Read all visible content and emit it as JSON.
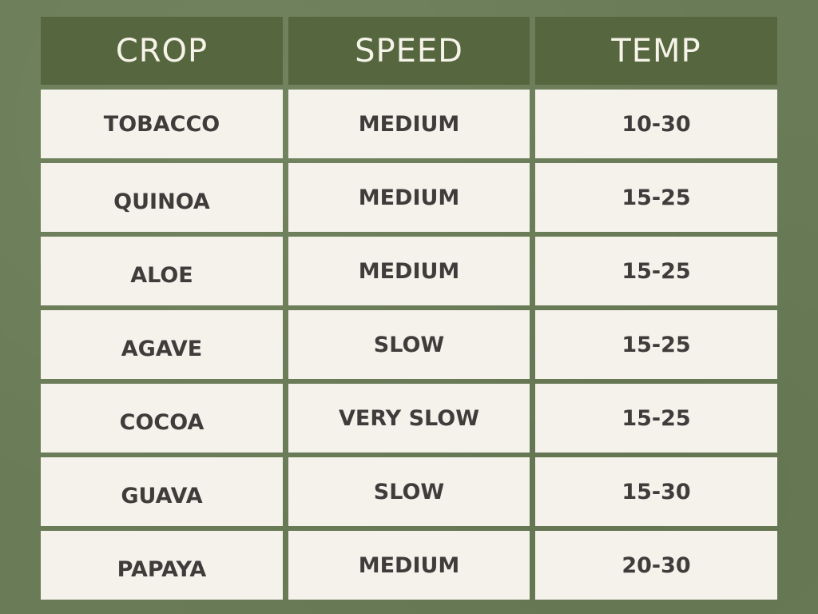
{
  "table": {
    "headers": [
      "CROP",
      "SPEED",
      "TEMP"
    ],
    "rows": [
      [
        "TOBACCO",
        "MEDIUM",
        "10-30"
      ],
      [
        "QUINOA",
        "MEDIUM",
        "15-25"
      ],
      [
        "ALOE",
        "MEDIUM",
        "15-25"
      ],
      [
        "AGAVE",
        "SLOW",
        "15-25"
      ],
      [
        "COCOA",
        "VERY SLOW",
        "15-25"
      ],
      [
        "GUAVA",
        "SLOW",
        "15-30"
      ],
      [
        "PAPAYA",
        "MEDIUM",
        "20-30"
      ]
    ]
  },
  "colors": {
    "background": "#6a7c57",
    "header": "#56663f",
    "header_text": "#f6f3e8",
    "cell": "#f5f2ec",
    "cell_text": "#403c3b"
  }
}
